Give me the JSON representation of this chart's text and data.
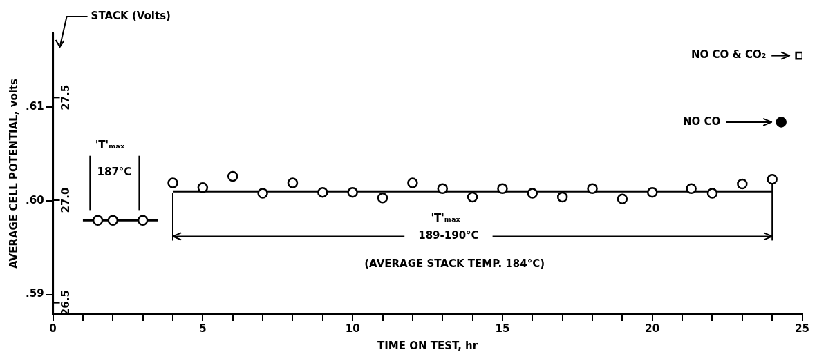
{
  "chart_data": {
    "type": "scatter",
    "xlabel": "TIME ON TEST, hr",
    "ylabel": "AVERAGE CELL POTENTIAL, volts",
    "y2label": "STACK (Volts)",
    "annotations": [
      "'T'ₘₐₓ",
      "187°C",
      "'T'ₘₐₓ",
      "189-190°C",
      "(AVERAGE STACK TEMP. 184°C)"
    ],
    "xlim": [
      0,
      25
    ],
    "xticks": [
      0,
      {
        "value": 1,
        "label": null
      },
      {
        "value": 2,
        "label": null
      },
      {
        "value": 3,
        "label": null
      },
      {
        "value": 4,
        "label": null
      },
      5,
      {
        "value": 6,
        "label": null
      },
      {
        "value": 7,
        "label": null
      },
      {
        "value": 8,
        "label": null
      },
      {
        "value": 9,
        "label": null
      },
      10,
      {
        "value": 11,
        "label": null
      },
      {
        "value": 12,
        "label": null
      },
      {
        "value": 13,
        "label": null
      },
      {
        "value": 14,
        "label": null
      },
      15,
      {
        "value": 16,
        "label": null
      },
      {
        "value": 17,
        "label": null
      },
      {
        "value": 18,
        "label": null
      },
      {
        "value": 19,
        "label": null
      },
      20,
      {
        "value": 21,
        "label": null
      },
      {
        "value": 22,
        "label": null
      },
      {
        "value": 23,
        "label": null
      },
      {
        "value": 24,
        "label": null
      },
      25
    ],
    "ylim": [
      0.5879,
      0.6179
    ],
    "yticks": [
      {
        "value": 0.59,
        "label": ".59"
      },
      {
        "value": 0.6,
        "label": ".60"
      },
      {
        "value": 0.61,
        "label": ".61"
      }
    ],
    "y2lim": [
      26.445,
      27.814
    ],
    "y2ticks": [
      26.5,
      {
        "value": 27,
        "label": "27.0"
      },
      27.5
    ],
    "grid": false,
    "legend": "top right",
    "series": [
      {
        "type": "scatter",
        "marker": "circle",
        "color": "#000000",
        "x": [
          1.5,
          2,
          3,
          4,
          5,
          6,
          7,
          8,
          9,
          10,
          11,
          12,
          13,
          14,
          15,
          16,
          17,
          18,
          19,
          20,
          21.3,
          22,
          23,
          24
        ],
        "values": [
          0.5979,
          0.5979,
          0.5979,
          0.6019,
          0.6014,
          0.6026,
          0.6008,
          0.6019,
          0.6009,
          0.6009,
          0.6003,
          0.6019,
          0.6013,
          0.6004,
          0.6013,
          0.6008,
          0.6004,
          0.6013,
          0.6002,
          0.6009,
          0.6013,
          0.6008,
          0.6018,
          0.6023
        ]
      },
      {
        "type": "line",
        "marker": "none",
        "line_style": "solid",
        "color": "#000000",
        "x": [
          1,
          3.5
        ],
        "values": [
          0.5979,
          0.5979
        ]
      },
      {
        "type": "line",
        "marker": "none",
        "line_style": "solid",
        "color": "#000000",
        "x": [
          4,
          24
        ],
        "values": [
          0.601,
          0.601
        ]
      },
      {
        "type": "scatter",
        "marker": "circle",
        "name": "NO CO",
        "color": "#000000",
        "x": [
          24.3
        ],
        "values": [
          0.6084
        ]
      },
      {
        "type": "scatter",
        "marker": "square",
        "name": "NO CO & CO₂",
        "color": "#000000",
        "x": [
          24.9
        ],
        "values": [
          0.6155
        ]
      }
    ]
  }
}
